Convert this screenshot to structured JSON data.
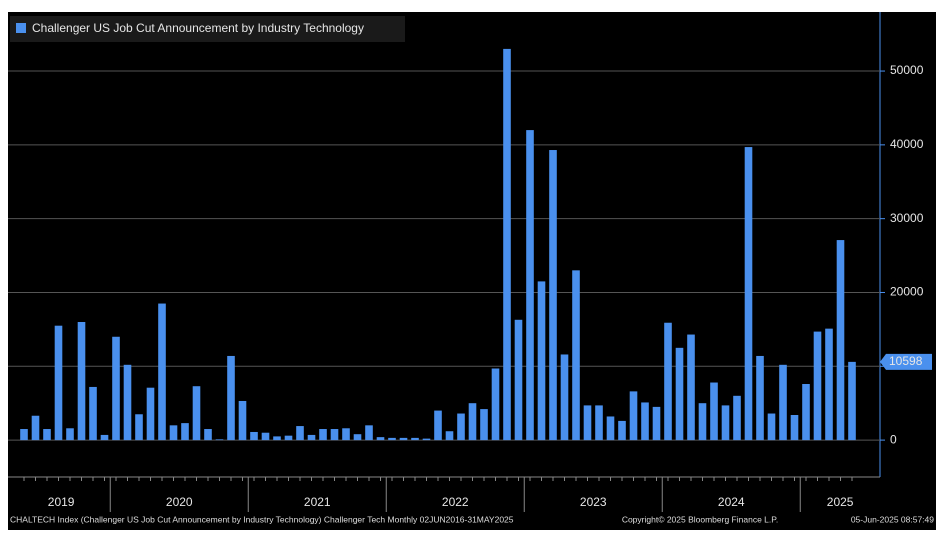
{
  "chart_data": {
    "type": "bar",
    "legend": "Challenger US Job Cut Announcement by Industry Technology",
    "color": "#4a90ee",
    "values": [
      1500,
      3300,
      1500,
      15500,
      1600,
      16000,
      7200,
      700,
      14000,
      10200,
      3500,
      7100,
      18500,
      2000,
      2300,
      7300,
      1500,
      100,
      11400,
      5300,
      1100,
      1000,
      500,
      600,
      1900,
      700,
      1500,
      1500,
      1600,
      800,
      2000,
      400,
      300,
      300,
      300,
      200,
      4000,
      1200,
      3600,
      5000,
      4200,
      9700,
      53000,
      16300,
      42000,
      21500,
      39300,
      11600,
      23000,
      4700,
      4700,
      3200,
      2600,
      6600,
      5100,
      4500,
      15900,
      12500,
      14300,
      5000,
      7800,
      4700,
      6000,
      39700,
      11400,
      3600,
      10200,
      3400,
      7600,
      14700,
      15100,
      27100,
      10598
    ],
    "year_labels": [
      "2019",
      "2020",
      "2021",
      "2022",
      "2023",
      "2024",
      "2025"
    ],
    "ylim": [
      -5000,
      58000
    ],
    "yticks": [
      0,
      10000,
      20000,
      30000,
      40000,
      50000
    ],
    "grid": true,
    "footer_left": "CHALTECH Index (Challenger US Job Cut Announcement by Industry Technology) Challenger Tech  Monthly 02JUN2016-31MAY2025",
    "footer_center": "Copyright© 2025 Bloomberg Finance L.P.",
    "footer_right": "05-Jun-2025 08:57:49"
  }
}
